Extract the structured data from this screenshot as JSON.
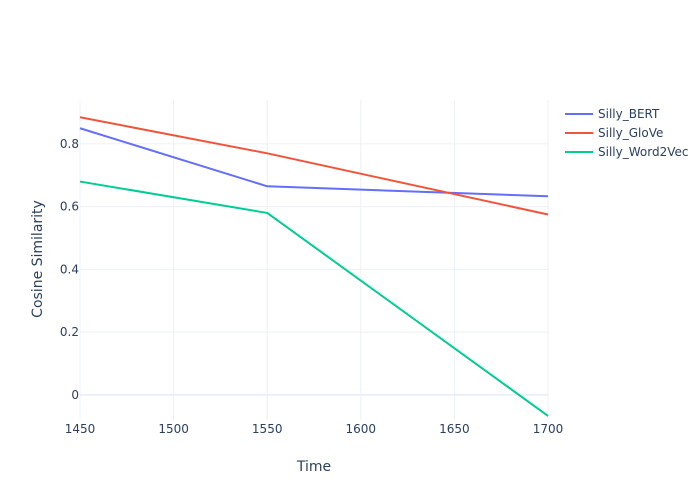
{
  "chart_data": {
    "type": "line",
    "title": "",
    "xlabel": "Time",
    "ylabel": "Cosine Similarity",
    "x": [
      1450,
      1550,
      1700
    ],
    "xlim": [
      1450,
      1700
    ],
    "ylim": [
      -0.08,
      0.94
    ],
    "xticks": [
      1450,
      1500,
      1550,
      1600,
      1650,
      1700
    ],
    "yticks": [
      0,
      0.2,
      0.4,
      0.6,
      0.8
    ],
    "ytick_labels": [
      "0",
      "0.2",
      "0.4",
      "0.6",
      "0.8"
    ],
    "grid": true,
    "legend_position": "top-right",
    "series": [
      {
        "name": "Silly_BERT",
        "color": "#636efa",
        "values": [
          0.85,
          0.665,
          0.633
        ]
      },
      {
        "name": "Silly_GloVe",
        "color": "#ef553b",
        "values": [
          0.885,
          0.77,
          0.575
        ]
      },
      {
        "name": "Silly_Word2Vec",
        "color": "#00cc96",
        "values": [
          0.68,
          0.58,
          -0.067
        ]
      }
    ]
  }
}
